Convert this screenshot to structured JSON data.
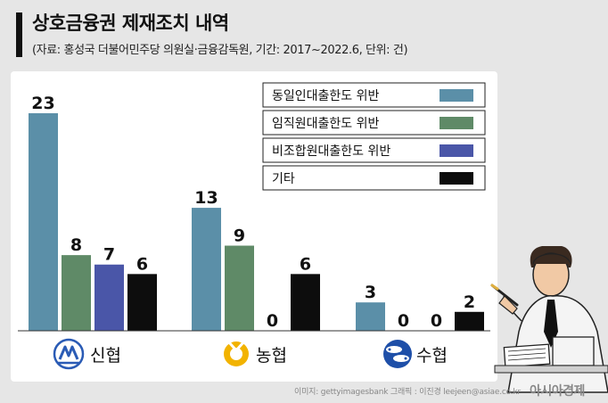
{
  "header": {
    "title": "상호금융권 제재조치 내역",
    "subtitle": "(자료: 홍성국 더불어민주당 의원실·금융감독원, 기간: 2017~2022.6,  단위: 건)"
  },
  "footer": {
    "credit": "이미지: gettyimagesbank   그래픽 : 이진경 leejeen@asiae.co.kr",
    "logo": "아시아경제"
  },
  "chart_data": {
    "type": "bar",
    "title": "상호금융권 제재조치 내역",
    "categories": [
      "신협",
      "농협",
      "수협"
    ],
    "series": [
      {
        "name": "동일인대출한도 위반",
        "color": "#5b8fa8",
        "values": [
          23,
          13,
          3
        ]
      },
      {
        "name": "임직원대출한도 위반",
        "color": "#5f8a67",
        "values": [
          8,
          9,
          0
        ]
      },
      {
        "name": "비조합원대출한도 위반",
        "color": "#4a56a8",
        "values": [
          7,
          0,
          0
        ]
      },
      {
        "name": "기타",
        "color": "#0d0d0d",
        "values": [
          6,
          6,
          2
        ]
      }
    ],
    "unit": "건",
    "legend_position": "top-right",
    "ylim": [
      0,
      23
    ],
    "grid": false
  }
}
